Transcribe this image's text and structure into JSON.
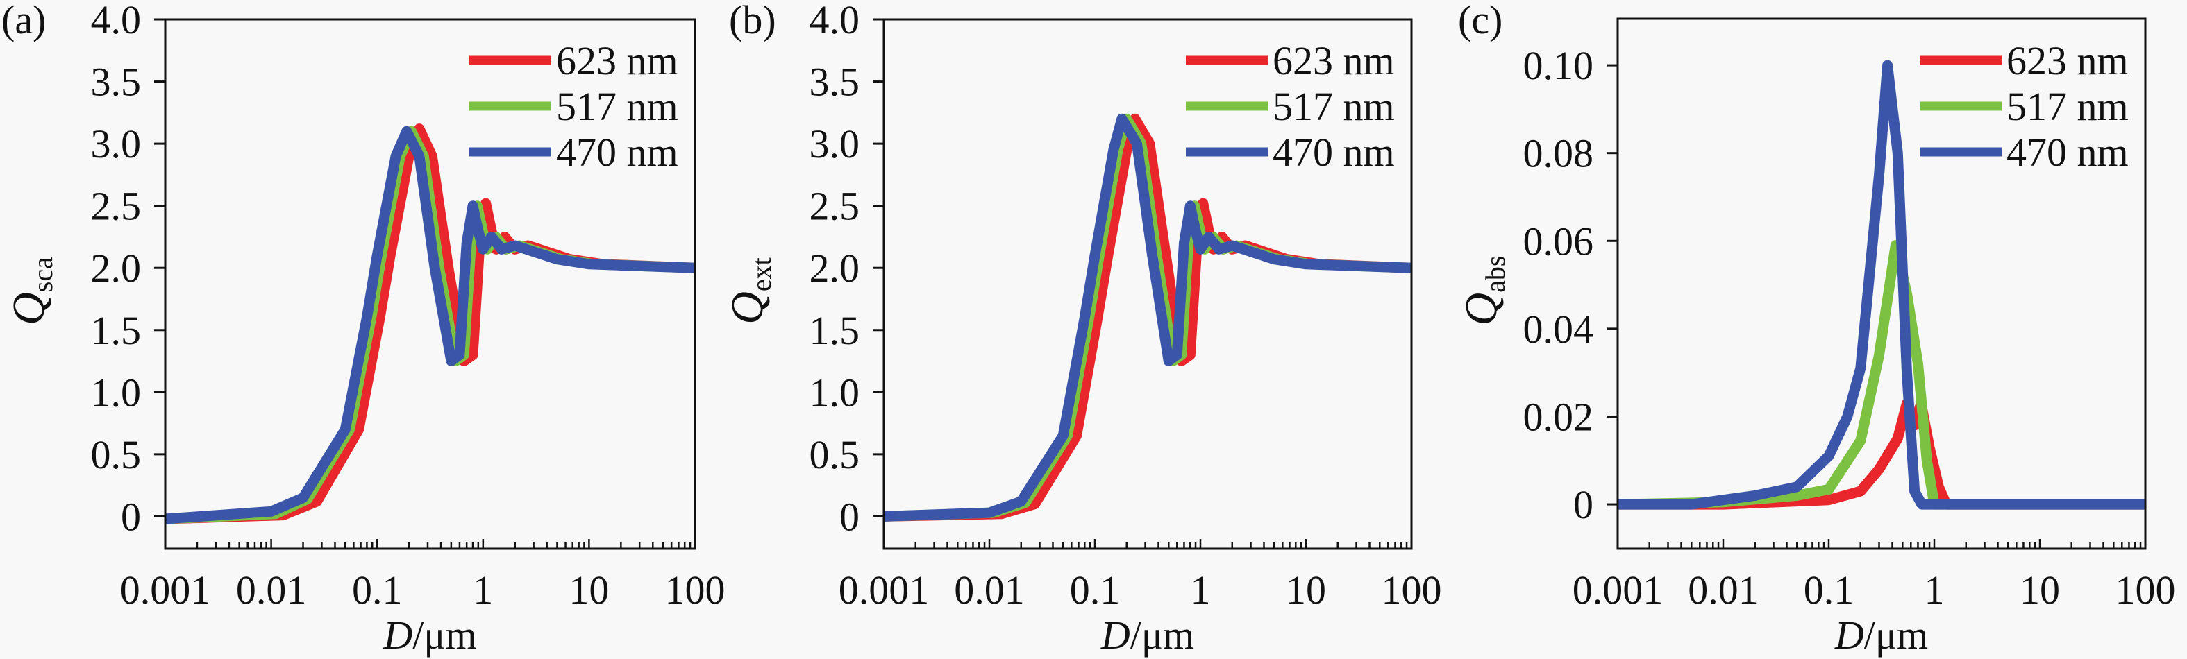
{
  "colors": {
    "623 nm": "#e8262b",
    "517 nm": "#7cc142",
    "470 nm": "#3b56a8",
    "axis": "#111111"
  },
  "chart_data": [
    {
      "type": "line",
      "panel": "(a)",
      "ylabel_main": "Q",
      "ylabel_sub": "sca",
      "xlabel_main": "D",
      "xlabel_unit": "/μm",
      "xscale": "log",
      "xlim": [
        0.001,
        100
      ],
      "ylim": [
        -0.26,
        4.0
      ],
      "xticks": [
        0.001,
        0.01,
        0.1,
        1,
        10,
        100
      ],
      "xtick_labels": [
        "0.001",
        "0.01",
        "0.1",
        "1",
        "10",
        "100"
      ],
      "yticks": [
        0,
        0.5,
        1.0,
        1.5,
        2.0,
        2.5,
        3.0,
        3.5,
        4.0
      ],
      "ytick_labels": [
        "0",
        "0.5",
        "1.0",
        "1.5",
        "2.0",
        "2.5",
        "3.0",
        "3.5",
        "4.0"
      ],
      "legend_position": "top-right",
      "grid": false,
      "series": [
        {
          "name": "623 nm",
          "x": [
            0.001,
            0.013,
            0.027,
            0.067,
            0.106,
            0.133,
            0.2,
            0.25,
            0.33,
            0.47,
            0.66,
            0.8,
            0.93,
            1.06,
            1.2,
            1.33,
            1.6,
            2.0,
            2.66,
            6.6,
            13.3,
            100
          ],
          "y": [
            -0.02,
            0.01,
            0.12,
            0.7,
            1.6,
            2.1,
            2.9,
            3.12,
            2.9,
            2.0,
            1.25,
            1.3,
            2.2,
            2.52,
            2.3,
            2.15,
            2.25,
            2.15,
            2.18,
            2.07,
            2.03,
            2.0
          ]
        },
        {
          "name": "517 nm",
          "x": [
            0.001,
            0.011,
            0.022,
            0.055,
            0.088,
            0.11,
            0.165,
            0.21,
            0.275,
            0.385,
            0.55,
            0.66,
            0.77,
            0.88,
            0.99,
            1.1,
            1.32,
            1.65,
            2.2,
            5.5,
            11,
            100
          ],
          "y": [
            -0.02,
            0.02,
            0.14,
            0.7,
            1.6,
            2.1,
            2.9,
            3.1,
            2.9,
            2.0,
            1.25,
            1.3,
            2.2,
            2.5,
            2.3,
            2.15,
            2.25,
            2.15,
            2.18,
            2.07,
            2.03,
            2.0
          ]
        },
        {
          "name": "470 nm",
          "x": [
            0.001,
            0.01,
            0.02,
            0.05,
            0.08,
            0.1,
            0.15,
            0.19,
            0.25,
            0.35,
            0.5,
            0.6,
            0.7,
            0.8,
            0.9,
            1.0,
            1.2,
            1.5,
            2,
            5,
            10,
            100
          ],
          "y": [
            -0.02,
            0.04,
            0.15,
            0.7,
            1.6,
            2.1,
            2.9,
            3.1,
            2.9,
            2.0,
            1.25,
            1.3,
            2.2,
            2.5,
            2.3,
            2.15,
            2.25,
            2.15,
            2.18,
            2.07,
            2.03,
            2.0
          ]
        }
      ]
    },
    {
      "type": "line",
      "panel": "(b)",
      "ylabel_main": "Q",
      "ylabel_sub": "ext",
      "xlabel_main": "D",
      "xlabel_unit": "/μm",
      "xscale": "log",
      "xlim": [
        0.001,
        100
      ],
      "ylim": [
        -0.26,
        4.0
      ],
      "xticks": [
        0.001,
        0.01,
        0.1,
        1,
        10,
        100
      ],
      "xtick_labels": [
        "0.001",
        "0.01",
        "0.1",
        "1",
        "10",
        "100"
      ],
      "yticks": [
        0,
        0.5,
        1.0,
        1.5,
        2.0,
        2.5,
        3.0,
        3.5,
        4.0
      ],
      "ytick_labels": [
        "0",
        "0.5",
        "1.0",
        "1.5",
        "2.0",
        "2.5",
        "3.0",
        "3.5",
        "4.0"
      ],
      "legend_position": "top-right",
      "grid": false,
      "series": [
        {
          "name": "623 nm",
          "x": [
            0.001,
            0.013,
            0.027,
            0.067,
            0.106,
            0.133,
            0.2,
            0.24,
            0.33,
            0.47,
            0.66,
            0.8,
            0.93,
            1.06,
            1.2,
            1.33,
            1.6,
            2.0,
            2.66,
            6.6,
            13.3,
            100
          ],
          "y": [
            0,
            0.02,
            0.1,
            0.65,
            1.6,
            2.1,
            2.95,
            3.2,
            3.0,
            2.1,
            1.25,
            1.3,
            2.2,
            2.52,
            2.3,
            2.15,
            2.25,
            2.15,
            2.18,
            2.07,
            2.03,
            2.0
          ]
        },
        {
          "name": "517 nm",
          "x": [
            0.001,
            0.011,
            0.022,
            0.055,
            0.088,
            0.11,
            0.165,
            0.2,
            0.275,
            0.385,
            0.55,
            0.66,
            0.77,
            0.88,
            0.99,
            1.1,
            1.32,
            1.65,
            2.2,
            5.5,
            11,
            100
          ],
          "y": [
            0,
            0.03,
            0.11,
            0.65,
            1.6,
            2.1,
            2.95,
            3.2,
            3.0,
            2.1,
            1.25,
            1.3,
            2.2,
            2.5,
            2.3,
            2.15,
            2.25,
            2.15,
            2.18,
            2.07,
            2.03,
            2.0
          ]
        },
        {
          "name": "470 nm",
          "x": [
            0.001,
            0.01,
            0.02,
            0.05,
            0.08,
            0.1,
            0.15,
            0.18,
            0.25,
            0.35,
            0.5,
            0.6,
            0.7,
            0.8,
            0.9,
            1.0,
            1.2,
            1.5,
            2,
            5,
            10,
            100
          ],
          "y": [
            0,
            0.03,
            0.12,
            0.65,
            1.6,
            2.1,
            2.95,
            3.2,
            3.0,
            2.1,
            1.25,
            1.3,
            2.2,
            2.5,
            2.3,
            2.15,
            2.25,
            2.15,
            2.18,
            2.07,
            2.03,
            2.0
          ]
        }
      ]
    },
    {
      "type": "line",
      "panel": "(c)",
      "ylabel_main": "Q",
      "ylabel_sub": "abs",
      "xlabel_main": "D",
      "xlabel_unit": "/μm",
      "xscale": "log",
      "xlim": [
        0.001,
        100
      ],
      "ylim": [
        -0.0101,
        0.1106
      ],
      "xticks": [
        0.001,
        0.01,
        0.1,
        1,
        10,
        100
      ],
      "xtick_labels": [
        "0.001",
        "0.01",
        "0.1",
        "1",
        "10",
        "100"
      ],
      "yticks": [
        0,
        0.02,
        0.04,
        0.06,
        0.08,
        0.1
      ],
      "ytick_labels": [
        "0",
        "0.02",
        "0.04",
        "0.06",
        "0.08",
        "0.10"
      ],
      "legend_position": "top-right",
      "grid": false,
      "series": [
        {
          "name": "623 nm",
          "x": [
            0.001,
            0.01,
            0.1,
            0.2,
            0.3,
            0.45,
            0.55,
            0.65,
            0.75,
            0.9,
            1.1,
            1.3,
            100
          ],
          "y": [
            0,
            0,
            0.001,
            0.003,
            0.008,
            0.015,
            0.023,
            0.018,
            0.023,
            0.013,
            0.004,
            0,
            0
          ]
        },
        {
          "name": "517 nm",
          "x": [
            0.001,
            0.01,
            0.05,
            0.1,
            0.2,
            0.3,
            0.43,
            0.55,
            0.7,
            0.85,
            1.0,
            100
          ],
          "y": [
            0,
            0.0005,
            0.002,
            0.0034,
            0.0145,
            0.034,
            0.059,
            0.048,
            0.032,
            0.01,
            0,
            0
          ]
        },
        {
          "name": "470 nm",
          "x": [
            0.001,
            0.005,
            0.01,
            0.02,
            0.05,
            0.1,
            0.15,
            0.2,
            0.3,
            0.36,
            0.45,
            0.55,
            0.65,
            0.76,
            100
          ],
          "y": [
            0,
            0,
            0.001,
            0.002,
            0.004,
            0.011,
            0.02,
            0.031,
            0.075,
            0.1,
            0.08,
            0.03,
            0.003,
            0,
            0
          ]
        }
      ]
    }
  ]
}
